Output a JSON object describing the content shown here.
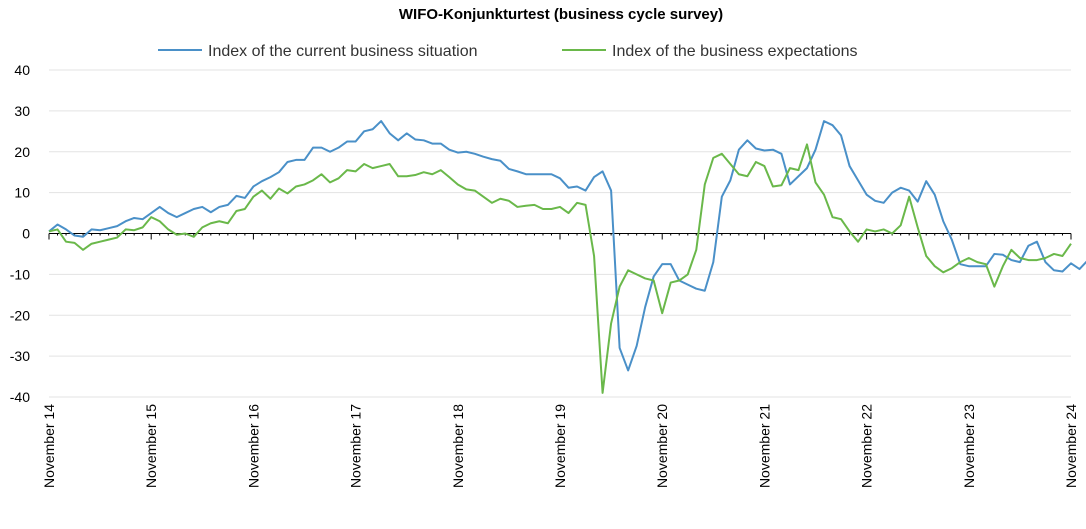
{
  "chart_data": {
    "type": "line",
    "title": "WIFO-Konjunkturtest (business cycle survey)",
    "xlabel": "",
    "ylabel": "",
    "ylim": [
      -40,
      40
    ],
    "yticks": [
      -40,
      -30,
      -20,
      -10,
      0,
      10,
      20,
      30,
      40
    ],
    "x_range": [
      "2014-11",
      "2024-11"
    ],
    "x_ticks": [
      {
        "date": "2014-11",
        "label": "November 14"
      },
      {
        "date": "2015-11",
        "label": "November 15"
      },
      {
        "date": "2016-11",
        "label": "November 16"
      },
      {
        "date": "2017-11",
        "label": "November 17"
      },
      {
        "date": "2018-11",
        "label": "November 18"
      },
      {
        "date": "2019-11",
        "label": "November 19"
      },
      {
        "date": "2020-11",
        "label": "November 20"
      },
      {
        "date": "2021-11",
        "label": "November 21"
      },
      {
        "date": "2022-11",
        "label": "November 22"
      },
      {
        "date": "2023-11",
        "label": "November 23"
      },
      {
        "date": "2024-11",
        "label": "November 24"
      }
    ],
    "grid": "horizontal",
    "legend_position": "top",
    "series": [
      {
        "name": "Index of the current business situation",
        "color": "#4a90c8",
        "start": "2014-11",
        "values": [
          0.5,
          2.2,
          1.0,
          -0.5,
          -0.8,
          1.0,
          0.8,
          1.3,
          1.8,
          3.0,
          3.8,
          3.5,
          5.0,
          6.5,
          5.0,
          4.0,
          5.0,
          6.0,
          6.5,
          5.2,
          6.5,
          7.0,
          9.2,
          8.7,
          11.5,
          12.8,
          13.8,
          15.0,
          17.5,
          18.0,
          18.0,
          21.0,
          21.0,
          20.0,
          21.0,
          22.5,
          22.5,
          25.0,
          25.5,
          27.5,
          24.5,
          22.8,
          24.5,
          23.0,
          22.8,
          22.0,
          22.0,
          20.5,
          19.8,
          20.0,
          19.5,
          18.8,
          18.2,
          17.8,
          15.8,
          15.2,
          14.5,
          14.5,
          14.5,
          14.5,
          13.5,
          11.2,
          11.5,
          10.5,
          13.8,
          15.2,
          10.5,
          -28.0,
          -33.5,
          -27.5,
          -18.0,
          -10.5,
          -7.5,
          -7.5,
          -11.5,
          -12.5,
          -13.5,
          -14.0,
          -7.0,
          9.0,
          13.0,
          20.5,
          22.8,
          20.8,
          20.3,
          20.5,
          19.5,
          12.0,
          14.0,
          16.0,
          20.5,
          27.5,
          26.5,
          24.0,
          16.5,
          13.0,
          9.5,
          8.0,
          7.5,
          10.0,
          11.2,
          10.5,
          7.8,
          12.8,
          9.5,
          3.0,
          -1.5,
          -7.5,
          -8.0,
          -8.0,
          -8.0,
          -5.0,
          -5.2,
          -6.5,
          -7.0,
          -3.0,
          -2.0,
          -7.0,
          -9.0,
          -9.3,
          -7.3,
          -8.7,
          -6.5
        ]
      },
      {
        "name": "Index of the business expectations",
        "color": "#6ab84a",
        "start": "2014-11",
        "values": [
          0.5,
          1.0,
          -2.0,
          -2.3,
          -4.0,
          -2.5,
          -2.0,
          -1.5,
          -1.0,
          1.0,
          0.8,
          1.5,
          4.0,
          3.0,
          1.0,
          -0.3,
          0.0,
          -0.8,
          1.5,
          2.5,
          3.0,
          2.5,
          5.5,
          6.0,
          9.0,
          10.5,
          8.5,
          11.0,
          9.8,
          11.5,
          12.0,
          13.0,
          14.5,
          12.5,
          13.5,
          15.5,
          15.2,
          17.0,
          16.0,
          16.5,
          17.0,
          14.0,
          14.0,
          14.3,
          15.0,
          14.5,
          15.5,
          13.8,
          12.0,
          10.8,
          10.5,
          9.0,
          7.5,
          8.5,
          8.0,
          6.5,
          6.8,
          7.0,
          6.0,
          6.0,
          6.5,
          5.0,
          7.5,
          7.0,
          -5.5,
          -39.0,
          -22.0,
          -13.0,
          -9.0,
          -10.0,
          -11.0,
          -11.5,
          -19.5,
          -12.0,
          -11.5,
          -10.0,
          -4.0,
          12.0,
          18.5,
          19.5,
          17.0,
          14.5,
          14.0,
          17.5,
          16.5,
          11.5,
          11.8,
          16.0,
          15.5,
          21.8,
          12.5,
          9.5,
          4.0,
          3.5,
          0.5,
          -2.0,
          1.0,
          0.5,
          1.0,
          0.0,
          2.0,
          9.0,
          1.5,
          -5.5,
          -8.0,
          -9.5,
          -8.5,
          -7.0,
          -6.0,
          -7.0,
          -7.5,
          -13.0,
          -8.0,
          -4.0,
          -6.0,
          -6.5,
          -6.5,
          -6.0,
          -5.0,
          -5.5,
          -2.5
        ]
      }
    ]
  }
}
